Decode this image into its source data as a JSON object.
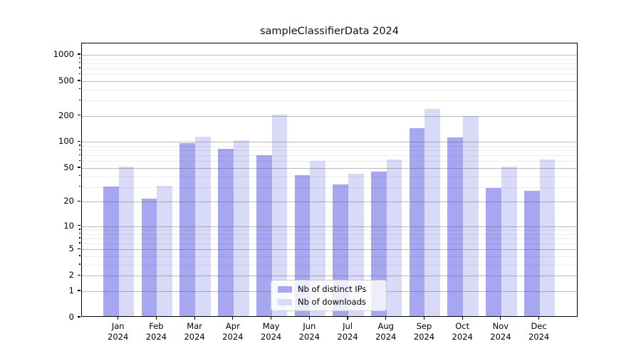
{
  "title": "sampleClassifierData 2024",
  "legend": {
    "position": "lower center",
    "items": [
      {
        "label": "Nb of distinct IPs",
        "color": "#a6a6f1"
      },
      {
        "label": "Nb of downloads",
        "color": "#d9d9f8"
      }
    ]
  },
  "chart_data": {
    "type": "bar",
    "title": "sampleClassifierData 2024",
    "categories": [
      "Jan 2024",
      "Feb 2024",
      "Mar 2024",
      "Apr 2024",
      "May 2024",
      "Jun 2024",
      "Jul 2024",
      "Aug 2024",
      "Sep 2024",
      "Oct 2024",
      "Nov 2024",
      "Dec 2024"
    ],
    "series": [
      {
        "name": "Nb of distinct IPs",
        "color": "#a6a6f1",
        "values": [
          29,
          21,
          94,
          81,
          68,
          40,
          31,
          44,
          140,
          108,
          28,
          26
        ]
      },
      {
        "name": "Nb of downloads",
        "color": "#d9d9f8",
        "values": [
          50,
          30,
          111,
          100,
          198,
          58,
          41,
          60,
          232,
          190,
          50,
          60
        ]
      }
    ],
    "xlabel": "",
    "ylabel": "",
    "y_axis": {
      "scale": "log1p",
      "major_ticks": [
        0,
        1,
        2,
        5,
        10,
        20,
        50,
        100,
        200,
        500,
        1000
      ],
      "minor_ticks": [
        3,
        4,
        6,
        7,
        8,
        9,
        30,
        40,
        60,
        70,
        80,
        90,
        300,
        400,
        600,
        700,
        800,
        900
      ],
      "ylim": [
        0,
        1350
      ]
    },
    "grid": true,
    "grid_over_bars": true,
    "legend_position": "lower center",
    "colors": {
      "major_grid": "rgba(90,90,90,0.42)",
      "minor_grid": "rgba(0,0,0,0.07)",
      "spine": "#000000",
      "background": "#ffffff"
    }
  }
}
